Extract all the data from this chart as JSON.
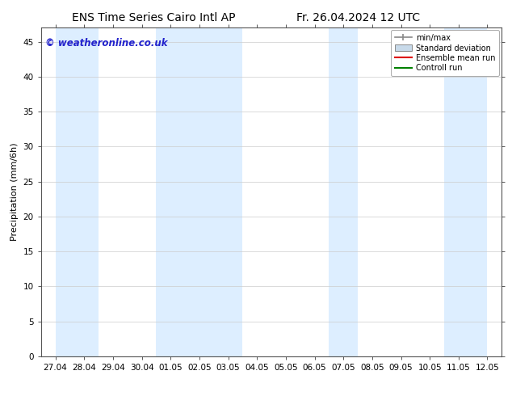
{
  "title_left": "ENS Time Series Cairo Intl AP",
  "title_right": "Fr. 26.04.2024 12 UTC",
  "ylabel": "Precipitation (mm/6h)",
  "watermark": "© weatheronline.co.uk",
  "xlim_start": 0,
  "xlim_end": 15,
  "ylim": [
    0,
    47
  ],
  "yticks": [
    0,
    5,
    10,
    15,
    20,
    25,
    30,
    35,
    40,
    45
  ],
  "xtick_labels": [
    "27.04",
    "28.04",
    "29.04",
    "30.04",
    "01.05",
    "02.05",
    "03.05",
    "04.05",
    "05.05",
    "06.05",
    "07.05",
    "08.05",
    "09.05",
    "10.05",
    "11.05",
    "12.05"
  ],
  "bg_color": "#ffffff",
  "plot_bg_color": "#ffffff",
  "shaded_band_color": "#ddeeff",
  "shaded_columns": [
    0,
    2,
    4,
    7,
    9,
    11,
    14
  ],
  "legend_labels": [
    "min/max",
    "Standard deviation",
    "Ensemble mean run",
    "Controll run"
  ],
  "title_fontsize": 10,
  "tick_fontsize": 7.5,
  "ylabel_fontsize": 8,
  "watermark_color": "#2222cc",
  "watermark_fontsize": 8.5
}
